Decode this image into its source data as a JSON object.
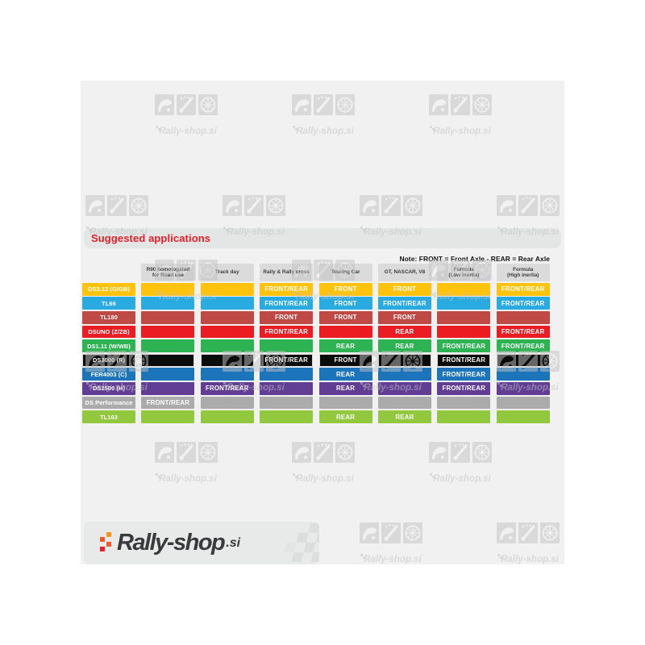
{
  "page": {
    "title_bar": {
      "label": "Suggested applications"
    },
    "note": "Note: FRONT = Front Axle - REAR = Rear Axle"
  },
  "chart_data": {
    "type": "table",
    "title": "Suggested applications",
    "note": "Note: FRONT = Front Axle - REAR = Rear Axle",
    "columns": [
      "R90 homologated\nfor Road use",
      "Track day",
      "Rally & Rally cross",
      "Touring Car",
      "GT, NASCAR, V8",
      "Formula\n(Low inertia)",
      "Formula\n(High inertia)"
    ],
    "rows": [
      {
        "label": "DS3.12 (G/GB)",
        "color": "#FFC20D",
        "outlined": false,
        "values": [
          "",
          "",
          "FRONT/REAR",
          "FRONT",
          "FRONT",
          "",
          "FRONT/REAR"
        ]
      },
      {
        "label": "TL66",
        "color": "#29ABE2",
        "outlined": false,
        "values": [
          "",
          "",
          "FRONT/REAR",
          "FRONT",
          "FRONT/REAR",
          "",
          "FRONT/REAR"
        ]
      },
      {
        "label": "TL180",
        "color": "#BF4A45",
        "outlined": false,
        "values": [
          "",
          "",
          "FRONT",
          "FRONT",
          "FRONT",
          "",
          ""
        ]
      },
      {
        "label": "DSUNO (Z/ZB)",
        "color": "#EC1C23",
        "outlined": false,
        "values": [
          "",
          "",
          "FRONT/REAR",
          "",
          "REAR",
          "",
          "FRONT/REAR"
        ]
      },
      {
        "label": "DS1.11 (W/WB)",
        "color": "#2EB353",
        "outlined": false,
        "values": [
          "",
          "",
          "",
          "REAR",
          "REAR",
          "FRONT/REAR",
          "FRONT/REAR"
        ]
      },
      {
        "label": "DS3000 (R)",
        "color": "#0B0B0B",
        "outlined": true,
        "values": [
          "",
          "",
          "FRONT/REAR",
          "FRONT",
          "",
          "FRONT/REAR",
          ""
        ]
      },
      {
        "label": "FER4003 (C)",
        "color": "#1C75BB",
        "outlined": false,
        "values": [
          "",
          "",
          "",
          "REAR",
          "",
          "FRONT/REAR",
          ""
        ]
      },
      {
        "label": "DS2500 (H)",
        "color": "#613D94",
        "outlined": false,
        "values": [
          "",
          "FRONT/REAR",
          "",
          "REAR",
          "",
          "FRONT/REAR",
          ""
        ]
      },
      {
        "label": "DS Performance",
        "color": "#ABABAB",
        "outlined": false,
        "values": [
          "FRONT/REAR",
          "",
          "",
          "",
          "",
          "",
          ""
        ]
      },
      {
        "label": "TL163",
        "color": "#92C83E",
        "outlined": false,
        "values": [
          "",
          "",
          "",
          "REAR",
          "REAR",
          "",
          ""
        ]
      }
    ]
  },
  "watermark": {
    "text": "Rally-shop.si",
    "icons": [
      "helmet-icon",
      "gauge-icon",
      "wheel-icon"
    ]
  },
  "logo": {
    "text": "Rally-shop",
    "suffix": ".si",
    "mark_icon": "checkered-pixels-icon",
    "flag_icon": "checkered-flag-icon"
  },
  "colors": {
    "accent_red": "#E31E26",
    "page_bg": "#F1F1F2",
    "panel_bg": "#E4E5E5",
    "header_cell_bg": "#DBDBDB",
    "watermark_gray": "#C2C2C2",
    "logo_text": "#3A3A3C",
    "logo_orange_light": "#F7941D",
    "logo_orange": "#F15A24",
    "logo_red": "#E8242A"
  }
}
